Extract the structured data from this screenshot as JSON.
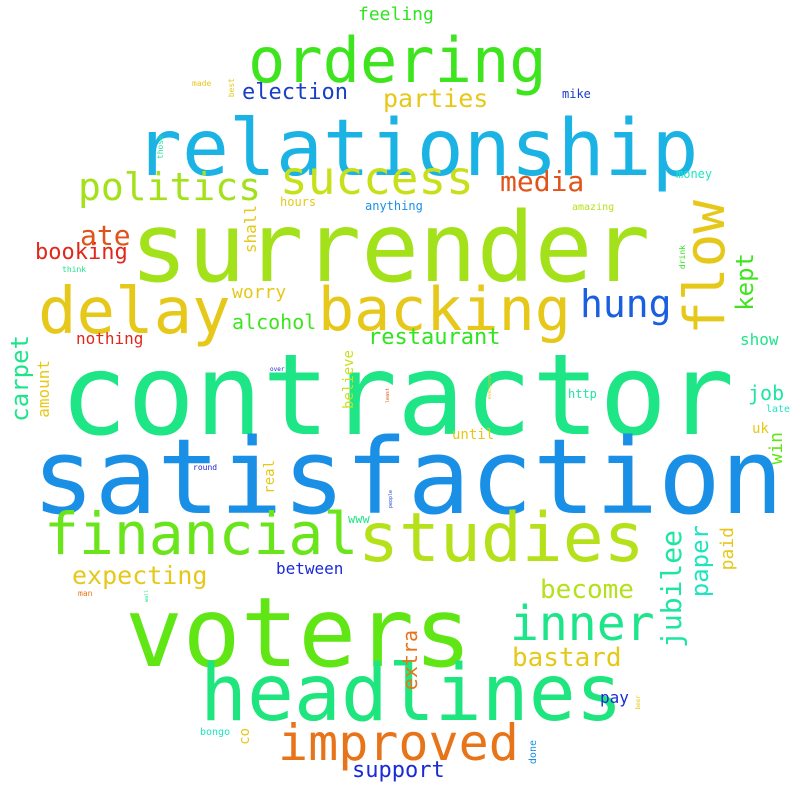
{
  "words": [
    {
      "text": "contractor",
      "color": "#1ee585",
      "weight": 100
    },
    {
      "text": "satisfaction",
      "color": "#1a8fe6",
      "weight": 92
    },
    {
      "text": "surrender",
      "color": "#a3e11b",
      "weight": 90
    },
    {
      "text": "voters",
      "color": "#5fe614",
      "weight": 88
    },
    {
      "text": "relationship",
      "color": "#1ab3e4",
      "weight": 70
    },
    {
      "text": "headlines",
      "color": "#1ee57e",
      "weight": 68
    },
    {
      "text": "studies",
      "color": "#b4e11a",
      "weight": 60
    },
    {
      "text": "backing",
      "color": "#e6c81a",
      "weight": 55
    },
    {
      "text": "delay",
      "color": "#e6c81a",
      "weight": 55
    },
    {
      "text": "ordering",
      "color": "#3ee51e",
      "weight": 55
    },
    {
      "text": "financial",
      "color": "#6ae41b",
      "weight": 50
    },
    {
      "text": "improved",
      "color": "#e8741a",
      "weight": 46
    },
    {
      "text": "success",
      "color": "#c8e01a",
      "weight": 45
    },
    {
      "text": "flow",
      "color": "#e6c81a",
      "weight": 44
    },
    {
      "text": "inner",
      "color": "#1ee58a",
      "weight": 44
    },
    {
      "text": "politics",
      "color": "#a3e11b",
      "weight": 36
    },
    {
      "text": "hung",
      "color": "#1a5fe0",
      "weight": 34
    },
    {
      "text": "media",
      "color": "#e0531a",
      "weight": 30
    },
    {
      "text": "ate",
      "color": "#e0531a",
      "weight": 28
    },
    {
      "text": "jubilee",
      "color": "#1ee5a3",
      "weight": 28
    },
    {
      "text": "kept",
      "color": "#3ee51e",
      "weight": 26
    },
    {
      "text": "become",
      "color": "#b4e11a",
      "weight": 26
    },
    {
      "text": "bastard",
      "color": "#e6c81a",
      "weight": 26
    },
    {
      "text": "parties",
      "color": "#e6c81a",
      "weight": 24
    },
    {
      "text": "expecting",
      "color": "#e6c81a",
      "weight": 24
    },
    {
      "text": "carpet",
      "color": "#1ee58a",
      "weight": 24
    },
    {
      "text": "paper",
      "color": "#1ee5c0",
      "weight": 24
    },
    {
      "text": "booking",
      "color": "#e0281a",
      "weight": 22
    },
    {
      "text": "election",
      "color": "#1a3ec8",
      "weight": 22
    },
    {
      "text": "restaurant",
      "color": "#2ee51e",
      "weight": 22
    },
    {
      "text": "support",
      "color": "#1a2ad6",
      "weight": 22
    },
    {
      "text": "alcohol",
      "color": "#3ee51e",
      "weight": 20
    },
    {
      "text": "extra",
      "color": "#e8741a",
      "weight": 20
    },
    {
      "text": "job",
      "color": "#1ee5a3",
      "weight": 20
    },
    {
      "text": "feeling",
      "color": "#2ee51e",
      "weight": 18
    },
    {
      "text": "worry",
      "color": "#e6c81a",
      "weight": 18
    },
    {
      "text": "paid",
      "color": "#e6c81a",
      "weight": 18
    },
    {
      "text": "win",
      "color": "#5fe614",
      "weight": 18
    },
    {
      "text": "amount",
      "color": "#e6c81a",
      "weight": 16
    },
    {
      "text": "shall",
      "color": "#e6c81a",
      "weight": 16
    },
    {
      "text": "nothing",
      "color": "#e0281a",
      "weight": 16
    },
    {
      "text": "show",
      "color": "#1ee58a",
      "weight": 16
    },
    {
      "text": "between",
      "color": "#1a2ad6",
      "weight": 16
    },
    {
      "text": "pay",
      "color": "#1a2ad6",
      "weight": 16
    },
    {
      "text": "real",
      "color": "#e6c81a",
      "weight": 14
    },
    {
      "text": "believe",
      "color": "#c8e01a",
      "weight": 14
    },
    {
      "text": "until",
      "color": "#e6c81a",
      "weight": 14
    },
    {
      "text": "co",
      "color": "#e6c81a",
      "weight": 14
    },
    {
      "text": "uk",
      "color": "#e6c81a",
      "weight": 14
    },
    {
      "text": "mike",
      "color": "#1a3ec8",
      "weight": 12
    },
    {
      "text": "money",
      "color": "#1ee5c0",
      "weight": 12
    },
    {
      "text": "hours",
      "color": "#e6c81a",
      "weight": 12
    },
    {
      "text": "anything",
      "color": "#1a8fe6",
      "weight": 12
    },
    {
      "text": "http",
      "color": "#1ee5a3",
      "weight": 12
    },
    {
      "text": "www",
      "color": "#1ee585",
      "weight": 12
    },
    {
      "text": "amazing",
      "color": "#b4e11a",
      "weight": 10
    },
    {
      "text": "late",
      "color": "#1ee5c0",
      "weight": 10
    },
    {
      "text": "bongo",
      "color": "#1ee5c0",
      "weight": 10
    },
    {
      "text": "done",
      "color": "#1a8fe6",
      "weight": 10
    },
    {
      "text": "made",
      "color": "#e6c81a",
      "weight": 8
    },
    {
      "text": "best",
      "color": "#e6c81a",
      "weight": 8
    },
    {
      "text": "those",
      "color": "#1ee5a3",
      "weight": 8
    },
    {
      "text": "think",
      "color": "#1ee585",
      "weight": 8
    },
    {
      "text": "drink",
      "color": "#2ee51e",
      "weight": 8
    },
    {
      "text": "round",
      "color": "#1a2ad6",
      "weight": 8
    },
    {
      "text": "man",
      "color": "#e8741a",
      "weight": 8
    },
    {
      "text": "beer",
      "color": "#e6c81a",
      "weight": 6
    },
    {
      "text": "over",
      "color": "#1a2ad6",
      "weight": 6
    },
    {
      "text": "least",
      "color": "#e0531a",
      "weight": 5
    },
    {
      "text": "everyone",
      "color": "#e6c81a",
      "weight": 5
    },
    {
      "text": "people",
      "color": "#1a3ec8",
      "weight": 5
    },
    {
      "text": "wall",
      "color": "#1ee585",
      "weight": 5
    }
  ]
}
